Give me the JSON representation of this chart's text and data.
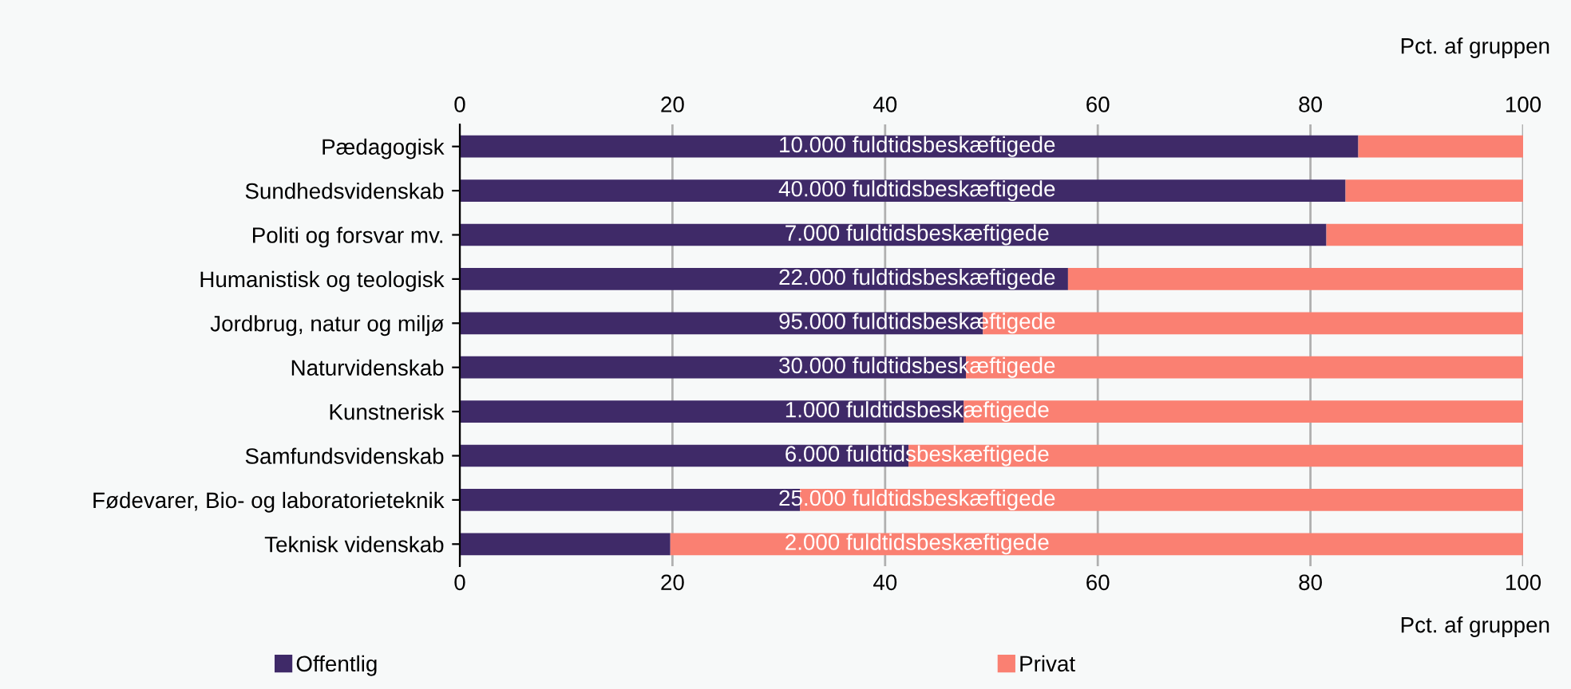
{
  "chart_data": {
    "type": "bar",
    "orientation": "horizontal",
    "stacked": true,
    "categories": [
      "Pædagogisk",
      "Sundhedsvidenskab",
      "Politi og forsvar mv.",
      "Humanistisk og teologisk",
      "Jordbrug, natur og miljø",
      "Naturvidenskab",
      "Kunstnerisk",
      "Samfundsvidenskab",
      "Fødevarer, Bio- og laboratorieteknik",
      "Teknisk videnskab"
    ],
    "series": [
      {
        "name": "Offentlig",
        "color": "#3f2a68",
        "values": [
          84.5,
          83.3,
          81.5,
          57.2,
          49.2,
          47.6,
          47.4,
          42.2,
          32.0,
          19.8
        ]
      },
      {
        "name": "Privat",
        "color": "#fa8072",
        "values": [
          15.5,
          16.7,
          18.5,
          42.8,
          50.8,
          52.4,
          52.6,
          57.8,
          68.0,
          80.2
        ]
      }
    ],
    "xlim": [
      0,
      100
    ],
    "xticks": [
      0,
      20,
      40,
      60,
      80,
      100
    ],
    "xlabel": "Pct. af gruppen",
    "x2lim": [
      0,
      100
    ],
    "x2ticks": [
      0,
      20,
      40,
      60,
      80,
      100
    ],
    "x2label": "Pct. af gruppen",
    "grid": "x",
    "legend": "bottom",
    "annotations": [
      "10.000 fuldtidsbeskæftigede",
      "40.000 fuldtidsbeskæftigede",
      "7.000 fuldtidsbeskæftigede",
      "22.000 fuldtidsbeskæftigede",
      "95.000 fuldtidsbeskæftigede",
      "30.000 fuldtidsbeskæftigede",
      "1.000 fuldtidsbeskæftigede",
      "6.000 fuldtidsbeskæftigede",
      "25.000 fuldtidsbeskæftigede",
      "2.000 fuldtidsbeskæftigede"
    ]
  }
}
